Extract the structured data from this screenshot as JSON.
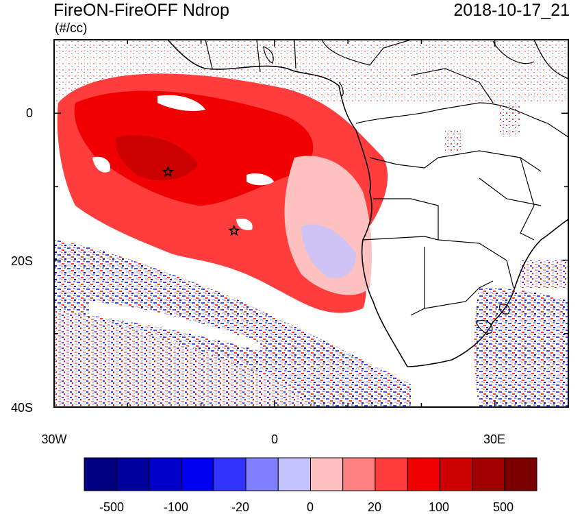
{
  "header": {
    "title": "FireON-FireOFF Ndrop",
    "units": "(#/cc)",
    "datetime": "2018-10-17_21"
  },
  "map": {
    "lon_range": [
      -30,
      40
    ],
    "lat_range": [
      -40,
      10
    ],
    "y_tick_labels": [
      "0",
      "20S",
      "40S"
    ],
    "x_tick_labels": [
      "30W",
      "0",
      "30E"
    ],
    "markers": [
      {
        "type": "star",
        "lon": -14.5,
        "lat": -8
      },
      {
        "type": "star",
        "lon": -5.5,
        "lat": -16
      }
    ]
  },
  "colorbar": {
    "colors": [
      "#000080",
      "#00009c",
      "#0000c8",
      "#0000f0",
      "#3333ff",
      "#8080ff",
      "#c3c3ff",
      "#ffc0c0",
      "#ff8080",
      "#ff3d3d",
      "#f00000",
      "#cc0000",
      "#a00000",
      "#7a0000"
    ],
    "labels": [
      "-500",
      "-100",
      "-20",
      "0",
      "20",
      "100",
      "500"
    ]
  }
}
